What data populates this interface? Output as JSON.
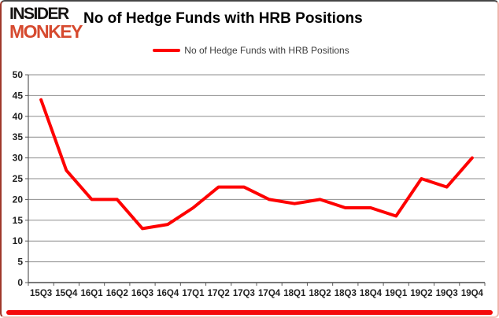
{
  "logo": {
    "line1": "INSIDER",
    "line2": "MONKEY"
  },
  "header": {
    "title": "No of Hedge Funds with HRB Positions"
  },
  "legend": {
    "label": "No of Hedge Funds with HRB Positions",
    "swatch_color": "#fe0000"
  },
  "chart_data": {
    "type": "line",
    "title": "No of Hedge Funds with HRB Positions",
    "categories": [
      "15Q3",
      "15Q4",
      "16Q1",
      "16Q2",
      "16Q3",
      "16Q4",
      "17Q1",
      "17Q2",
      "17Q3",
      "17Q4",
      "18Q1",
      "18Q2",
      "18Q3",
      "18Q4",
      "19Q1",
      "19Q2",
      "19Q3",
      "19Q4"
    ],
    "series": [
      {
        "name": "No of Hedge Funds with HRB Positions",
        "values": [
          44,
          27,
          20,
          20,
          13,
          14,
          18,
          23,
          23,
          20,
          19,
          20,
          18,
          18,
          16,
          25,
          23,
          30
        ]
      }
    ],
    "xlabel": "",
    "ylabel": "",
    "ylim": [
      0,
      50
    ],
    "ytick_step": 5,
    "ytick_labels": [
      "0",
      "5",
      "10",
      "15",
      "20",
      "25",
      "30",
      "35",
      "40",
      "45",
      "50"
    ],
    "grid": true,
    "legend_position": "top-center",
    "line_color": "#fe0000",
    "line_width": 4,
    "gridline_color": "#8e8e8e",
    "axis_color": "#595959",
    "tick_label_color": "#1f1f1f"
  },
  "colors": {
    "logo_black": "#161412",
    "logo_red": "#d64a2f",
    "frame_bottom_red": "#f40b0b",
    "background": "#ffffff"
  }
}
